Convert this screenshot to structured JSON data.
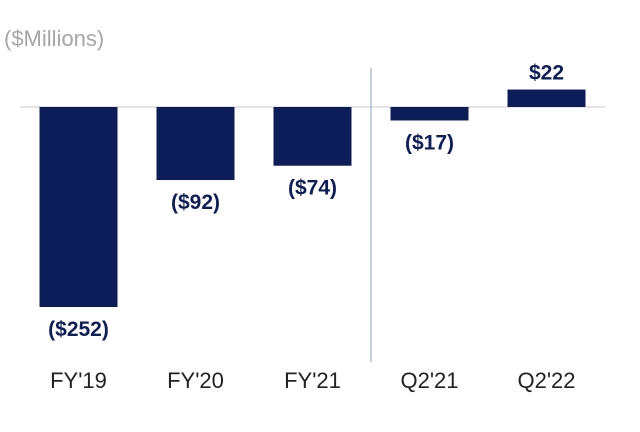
{
  "chart_data": {
    "type": "bar",
    "unit_label": "($Millions)",
    "categories": [
      "FY'19",
      "FY'20",
      "FY'21",
      "Q2'21",
      "Q2'22"
    ],
    "values": [
      -252,
      -92,
      -74,
      -17,
      22
    ],
    "value_labels": [
      "($252)",
      "($92)",
      "($74)",
      "($17)",
      "$22"
    ],
    "title": "",
    "xlabel": "",
    "ylabel": "",
    "ylim": [
      -252,
      22
    ],
    "grid": false,
    "legend": "none",
    "divider_after_index": 2,
    "colors": {
      "bar": "#0d1d5a",
      "label": "#0d1d5a",
      "axis": "#c8c8c8",
      "divider": "#8aa0c0",
      "tick": "#222222"
    }
  }
}
